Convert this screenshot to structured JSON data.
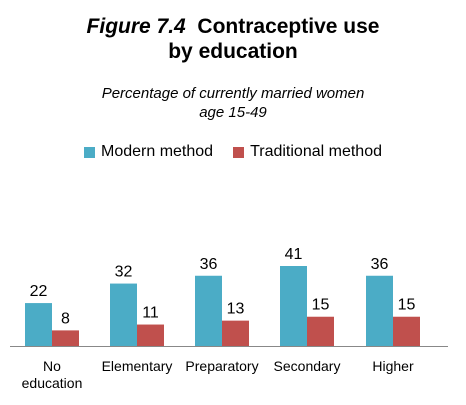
{
  "title": {
    "figure": "Figure 7.4",
    "line1": "Contraceptive use",
    "line2": "by education"
  },
  "subtitle": {
    "line1": "Percentage of currently married women",
    "line2": "age 15-49"
  },
  "colors": {
    "modern": "#4bacc6",
    "traditional": "#c0504d"
  },
  "chart_data": {
    "type": "bar",
    "categories": [
      [
        "No",
        "education"
      ],
      [
        "Elementary"
      ],
      [
        "Preparatory"
      ],
      [
        "Secondary"
      ],
      [
        "Higher"
      ]
    ],
    "series": [
      {
        "name": "Modern method",
        "values": [
          22,
          32,
          36,
          41,
          36
        ]
      },
      {
        "name": "Traditional method",
        "values": [
          8,
          11,
          13,
          15,
          15
        ]
      }
    ],
    "ylim": [
      0,
      41
    ],
    "grid": false,
    "legend": "top"
  }
}
